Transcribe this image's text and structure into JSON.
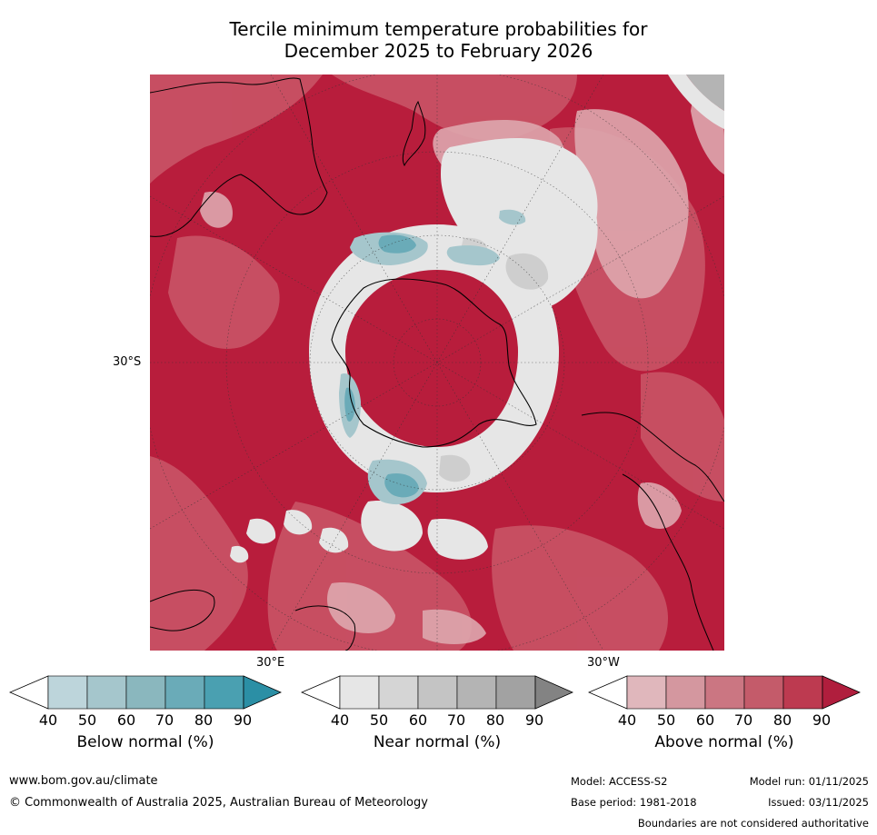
{
  "title": {
    "line1": "Tercile minimum temperature probabilities for",
    "line2": "December 2025 to February 2026"
  },
  "map": {
    "projection": "south-polar-stereographic",
    "labels": {
      "lat_30s": "30°S",
      "lon_30e": "30°E",
      "lon_30w": "30°W"
    },
    "colors": {
      "above_dominant": "#b81d3c",
      "above_mid": "#c95466",
      "above_light": "#dea7ae",
      "near_light": "#e6e6e6",
      "near_mid": "#c8c8c8",
      "below_mid": "#8cbcc4",
      "below_dark": "#4ba3b3",
      "coast": "#000000"
    }
  },
  "colorbars": [
    {
      "label": "Below normal (%)",
      "ticks": [
        "40",
        "50",
        "60",
        "70",
        "80",
        "90"
      ],
      "colors": [
        "#bdd5db",
        "#a5c6cc",
        "#8ab7be",
        "#6aabb8",
        "#4aa0b1",
        "#2b8fa5"
      ]
    },
    {
      "label": "Near normal (%)",
      "ticks": [
        "40",
        "50",
        "60",
        "70",
        "80",
        "90"
      ],
      "colors": [
        "#e6e6e6",
        "#d5d5d5",
        "#c4c4c4",
        "#b4b4b4",
        "#a2a2a2",
        "#838383"
      ]
    },
    {
      "label": "Above normal (%)",
      "ticks": [
        "40",
        "50",
        "60",
        "70",
        "80",
        "90"
      ],
      "colors": [
        "#e0b7bc",
        "#d4979f",
        "#cb7682",
        "#c45b6a",
        "#bd3a50",
        "#b01e3d"
      ]
    }
  ],
  "footer": {
    "website": "www.bom.gov.au/climate",
    "copyright": "© Commonwealth of Australia 2025, Australian Bureau of Meteorology",
    "model": "Model: ACCESS-S2",
    "base_period": "Base period: 1981-2018",
    "model_run": "Model run: 01/11/2025",
    "issued": "Issued: 03/11/2025",
    "disclaimer": "Boundaries are not considered authoritative"
  }
}
